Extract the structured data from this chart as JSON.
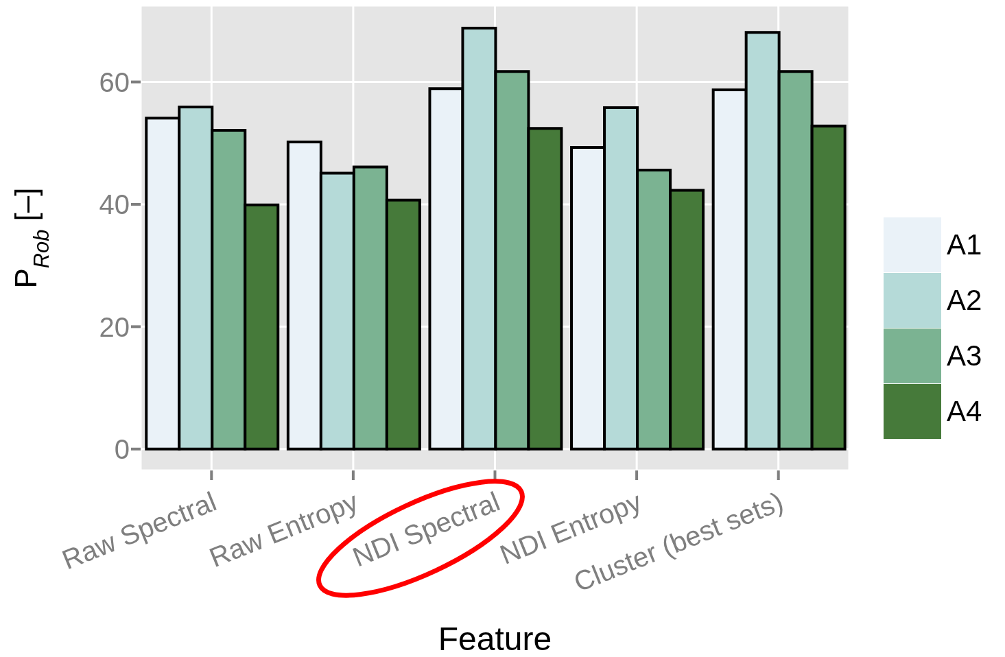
{
  "chart_data": {
    "type": "bar",
    "xlabel": "Feature",
    "ylabel": "P$_{Rob}$ [–]",
    "categories": [
      "Raw Spectral",
      "Raw Entropy",
      "NDI Spectral",
      "NDI Entropy",
      "Cluster (best sets)"
    ],
    "series": [
      {
        "name": "A1",
        "color": "#eaf2f8",
        "values": [
          54.1,
          50.2,
          58.9,
          49.3,
          58.7
        ]
      },
      {
        "name": "A2",
        "color": "#b5dad8",
        "values": [
          55.9,
          45.1,
          68.8,
          55.8,
          68.1
        ]
      },
      {
        "name": "A3",
        "color": "#7bb392",
        "values": [
          52.1,
          46.1,
          61.7,
          45.6,
          61.7
        ]
      },
      {
        "name": "A4",
        "color": "#467a3a",
        "values": [
          39.9,
          40.7,
          52.4,
          42.3,
          52.8
        ]
      }
    ],
    "ylim": [
      -3.5,
      72.5
    ],
    "yticks": [
      0,
      20,
      40,
      60
    ],
    "grid": true,
    "legend": "right"
  }
}
